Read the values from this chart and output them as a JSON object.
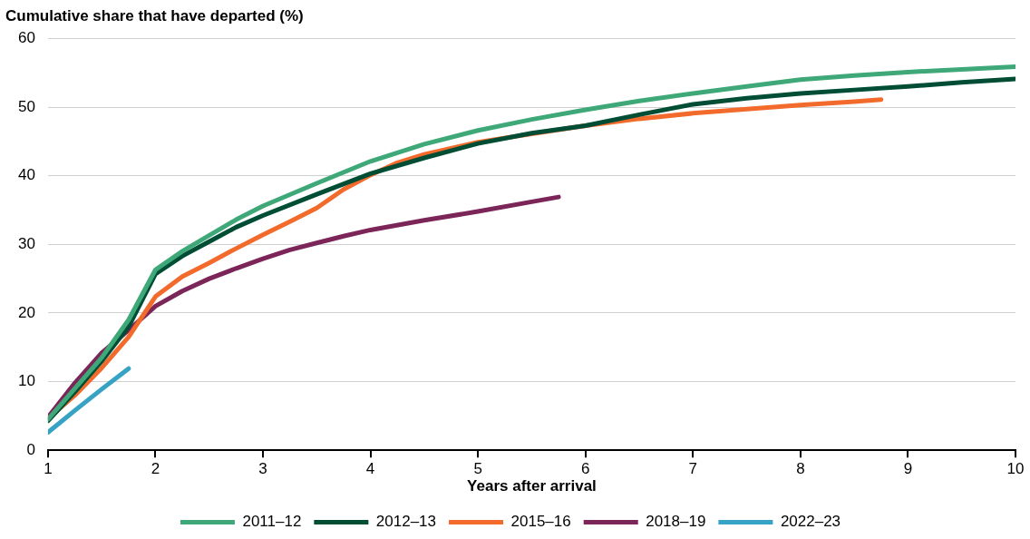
{
  "chart_data": {
    "type": "line",
    "ylabel": "Cumulative share that have departed (%)",
    "xlabel": "Years after arrival",
    "xlim": [
      1,
      10
    ],
    "xticks": [
      1,
      2,
      3,
      4,
      5,
      6,
      7,
      8,
      9,
      10
    ],
    "ylim": [
      0,
      60
    ],
    "yticks": [
      0,
      10,
      20,
      30,
      40,
      50,
      60
    ],
    "grid": "y",
    "legend": "bottom",
    "marker": "none",
    "line_style": "solid",
    "series": [
      {
        "name": "2011–12",
        "color": "#3fa878",
        "x": [
          1,
          1.25,
          1.5,
          1.75,
          2,
          2.25,
          2.5,
          2.75,
          3,
          3.5,
          4,
          4.5,
          5,
          5.5,
          6,
          6.5,
          7,
          7.5,
          8,
          8.5,
          9,
          9.5,
          10
        ],
        "values": [
          4.5,
          9,
          13.5,
          19,
          26.3,
          29,
          31.3,
          33.6,
          35.6,
          38.9,
          42.1,
          44.6,
          46.6,
          48.2,
          49.6,
          50.9,
          52,
          53,
          54,
          54.6,
          55.1,
          55.5,
          55.9
        ]
      },
      {
        "name": "2012–13",
        "color": "#004d35",
        "x": [
          1,
          1.25,
          1.5,
          1.75,
          2,
          2.25,
          2.5,
          2.75,
          3,
          3.5,
          4,
          4.5,
          5,
          5.5,
          6,
          6.5,
          7,
          7.5,
          8,
          8.5,
          9,
          9.5,
          10
        ],
        "values": [
          4.3,
          8.5,
          13,
          18,
          25.7,
          28.3,
          30.4,
          32.5,
          34.2,
          37.3,
          40.3,
          42.6,
          44.7,
          46.2,
          47.3,
          48.9,
          50.4,
          51.3,
          52,
          52.5,
          53,
          53.6,
          54.1
        ]
      },
      {
        "name": "2015–16",
        "color": "#f26b2c",
        "x": [
          1,
          1.25,
          1.5,
          1.75,
          2,
          2.25,
          2.5,
          2.75,
          3,
          3.25,
          3.5,
          3.75,
          4,
          4.25,
          4.5,
          5,
          5.5,
          6,
          6.5,
          7,
          7.5,
          8,
          8.5,
          8.75
        ],
        "values": [
          4.6,
          8,
          12,
          16.5,
          22.4,
          25.3,
          27.3,
          29.4,
          31.4,
          33.3,
          35.3,
          38,
          40.1,
          41.9,
          43.1,
          44.9,
          46.1,
          47.3,
          48.3,
          49.1,
          49.7,
          50.3,
          50.8,
          51.1
        ]
      },
      {
        "name": "2018–19",
        "color": "#7b2558",
        "x": [
          1,
          1.25,
          1.5,
          1.75,
          2,
          2.25,
          2.5,
          2.75,
          3,
          3.25,
          3.5,
          3.75,
          4,
          4.5,
          5,
          5.5,
          5.75
        ],
        "values": [
          4.8,
          9.8,
          14.2,
          17.5,
          21,
          23.2,
          25,
          26.5,
          27.9,
          29.2,
          30.2,
          31.2,
          32.1,
          33.5,
          34.8,
          36.2,
          36.9
        ]
      },
      {
        "name": "2022–23",
        "color": "#36a3c4",
        "x": [
          1,
          1.25,
          1.5,
          1.75
        ],
        "values": [
          2.6,
          5.8,
          8.9,
          11.9
        ]
      }
    ]
  }
}
